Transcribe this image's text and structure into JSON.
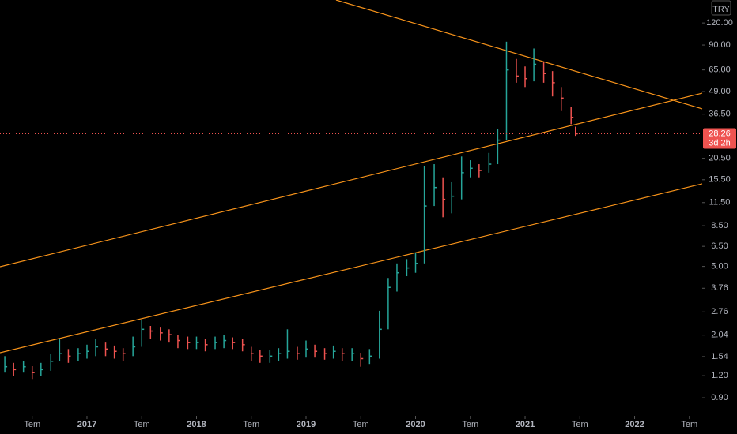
{
  "chart_data": {
    "type": "ohlc",
    "currency": "TRY",
    "log_scale": true,
    "up_color": "#26a69a",
    "down_color": "#ef5350",
    "x": [
      2016.25,
      2016.33,
      2016.42,
      2016.5,
      2016.58,
      2016.67,
      2016.75,
      2016.83,
      2016.92,
      2017.0,
      2017.08,
      2017.17,
      2017.25,
      2017.33,
      2017.42,
      2017.5,
      2017.58,
      2017.67,
      2017.75,
      2017.83,
      2017.92,
      2018.0,
      2018.08,
      2018.17,
      2018.25,
      2018.33,
      2018.42,
      2018.5,
      2018.58,
      2018.67,
      2018.75,
      2018.83,
      2018.92,
      2019.0,
      2019.08,
      2019.17,
      2019.25,
      2019.33,
      2019.42,
      2019.5,
      2019.58,
      2019.67,
      2019.75,
      2019.83,
      2019.92,
      2020.0,
      2020.08,
      2020.17,
      2020.25,
      2020.33,
      2020.42,
      2020.5,
      2020.58,
      2020.67,
      2020.75,
      2020.83,
      2020.92,
      2021.0,
      2021.08,
      2021.17,
      2021.25,
      2021.33,
      2021.42,
      2021.46
    ],
    "high": [
      1.55,
      1.42,
      1.45,
      1.36,
      1.42,
      1.6,
      1.95,
      1.7,
      1.72,
      1.8,
      1.95,
      1.85,
      1.78,
      1.72,
      2.0,
      2.5,
      2.3,
      2.25,
      2.2,
      2.05,
      2.0,
      2.0,
      1.95,
      2.0,
      2.05,
      1.98,
      1.95,
      1.75,
      1.68,
      1.68,
      1.72,
      2.2,
      1.75,
      1.9,
      1.8,
      1.72,
      1.78,
      1.72,
      1.72,
      1.62,
      1.7,
      2.8,
      4.3,
      5.2,
      5.5,
      6.0,
      18.5,
      19,
      16,
      15,
      21,
      20,
      19,
      22,
      30,
      94,
      75,
      68,
      86,
      72,
      64,
      52,
      40,
      31
    ],
    "low": [
      1.25,
      1.2,
      1.25,
      1.15,
      1.2,
      1.28,
      1.45,
      1.42,
      1.45,
      1.5,
      1.55,
      1.55,
      1.5,
      1.45,
      1.55,
      1.75,
      1.95,
      1.9,
      1.85,
      1.72,
      1.7,
      1.7,
      1.65,
      1.7,
      1.72,
      1.7,
      1.65,
      1.45,
      1.42,
      1.42,
      1.45,
      1.5,
      1.48,
      1.52,
      1.52,
      1.48,
      1.5,
      1.45,
      1.45,
      1.35,
      1.4,
      1.5,
      2.2,
      3.6,
      4.4,
      4.6,
      5.2,
      11,
      9.5,
      10,
      12,
      16,
      16,
      17,
      19,
      26,
      55,
      52,
      56,
      55,
      46,
      38,
      32,
      27.5
    ],
    "close": [
      1.35,
      1.3,
      1.35,
      1.25,
      1.3,
      1.45,
      1.6,
      1.55,
      1.6,
      1.65,
      1.75,
      1.7,
      1.65,
      1.6,
      1.75,
      2.2,
      2.15,
      2.1,
      2.05,
      1.9,
      1.85,
      1.85,
      1.8,
      1.85,
      1.9,
      1.85,
      1.8,
      1.6,
      1.55,
      1.55,
      1.6,
      1.65,
      1.6,
      1.7,
      1.65,
      1.6,
      1.65,
      1.6,
      1.6,
      1.5,
      1.55,
      2.2,
      3.8,
      4.6,
      4.9,
      5.2,
      11,
      14,
      12,
      12.5,
      17,
      18,
      17.5,
      19,
      26,
      65,
      60,
      58,
      70,
      62,
      55,
      45,
      35,
      28.26
    ],
    "xlim": [
      2016.206,
      2022.617
    ],
    "ylim": [
      0.733,
      162
    ],
    "xticks": [
      {
        "value": 2016.5,
        "label": "Tem"
      },
      {
        "value": 2017,
        "label": "2017"
      },
      {
        "value": 2017.5,
        "label": "Tem"
      },
      {
        "value": 2018,
        "label": "2018"
      },
      {
        "value": 2018.5,
        "label": "Tem"
      },
      {
        "value": 2019,
        "label": "2019"
      },
      {
        "value": 2019.5,
        "label": "Tem"
      },
      {
        "value": 2020,
        "label": "2020"
      },
      {
        "value": 2020.5,
        "label": "Tem"
      },
      {
        "value": 2021,
        "label": "2021"
      },
      {
        "value": 2021.5,
        "label": "Tem"
      },
      {
        "value": 2022,
        "label": "2022"
      },
      {
        "value": 2022.5,
        "label": "Tem"
      }
    ],
    "yticks": [
      {
        "value": 0.9,
        "label": "0.90"
      },
      {
        "value": 1.2,
        "label": "1.20"
      },
      {
        "value": 1.54,
        "label": "1.54"
      },
      {
        "value": 2.04,
        "label": "2.04"
      },
      {
        "value": 2.76,
        "label": "2.76"
      },
      {
        "value": 3.76,
        "label": "3.76"
      },
      {
        "value": 5,
        "label": "5.00"
      },
      {
        "value": 6.5,
        "label": "6.50"
      },
      {
        "value": 8.5,
        "label": "8.50"
      },
      {
        "value": 11.5,
        "label": "11.50"
      },
      {
        "value": 15.5,
        "label": "15.50"
      },
      {
        "value": 20.5,
        "label": "20.50"
      },
      {
        "value": 36.5,
        "label": "36.50"
      },
      {
        "value": 49,
        "label": "49.00"
      },
      {
        "value": 65,
        "label": "65.00"
      },
      {
        "value": 90,
        "label": "90.00"
      },
      {
        "value": 120,
        "label": "120.00"
      }
    ],
    "last_price": {
      "value": 28.26,
      "label": "28.26",
      "countdown": "3d 2h"
    },
    "trend_lines": {
      "color": "#f7931a",
      "lines": [
        {
          "x": [
            2019.274,
            2022.617
          ],
          "y": [
            162,
            39.1
          ]
        },
        {
          "x": [
            2016.206,
            2022.617
          ],
          "y": [
            4.98,
            48
          ]
        },
        {
          "x": [
            2016.206,
            2022.617
          ],
          "y": [
            1.62,
            14.7
          ]
        }
      ]
    }
  }
}
